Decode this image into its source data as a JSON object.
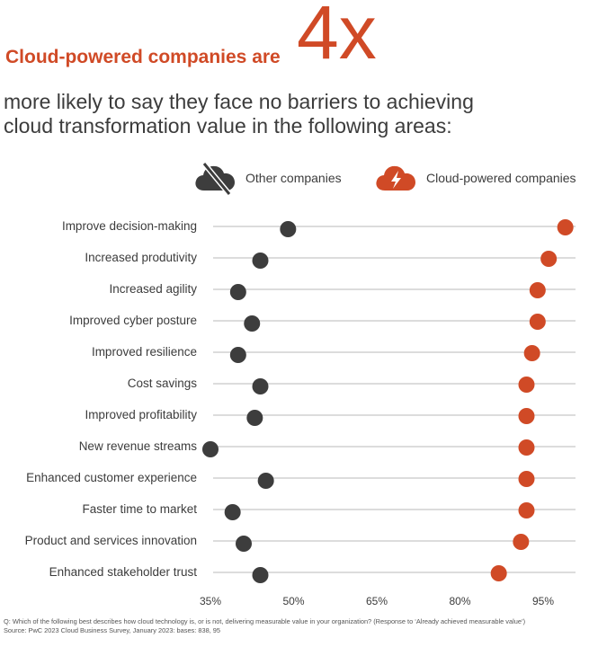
{
  "headline": {
    "lead": "Cloud-powered companies are",
    "multiplier": "4x"
  },
  "subhead": {
    "line1": "more likely to say they face no barriers to achieving",
    "line2": "cloud transformation value in the following areas:"
  },
  "legend": {
    "other": {
      "label": "Other companies",
      "icon": "cloud-off-icon",
      "color": "#3d3d3d"
    },
    "cloud": {
      "label": "Cloud-powered companies",
      "icon": "cloud-bolt-icon",
      "color": "#d04a26"
    }
  },
  "chart_data": {
    "type": "dot",
    "categories": [
      "Improve decision-making",
      "Increased produtivity",
      "Increased agility",
      "Improved cyber posture",
      "Improved resilience",
      "Cost savings",
      "Improved profitability",
      "New revenue streams",
      "Enhanced customer experience",
      "Faster time to market",
      "Product and services innovation",
      "Enhanced stakeholder trust"
    ],
    "series": [
      {
        "name": "Other companies",
        "color": "#3d3d3d",
        "values": [
          49,
          44,
          40,
          42.5,
          40,
          44,
          43,
          35,
          45,
          39,
          41,
          44
        ]
      },
      {
        "name": "Cloud-powered companies",
        "color": "#d04a26",
        "values": [
          99,
          96,
          94,
          94,
          93,
          92,
          92,
          92,
          92,
          92,
          91,
          87
        ]
      }
    ],
    "xticks": [
      "35%",
      "50%",
      "65%",
      "80%",
      "95%"
    ],
    "xtick_values": [
      35,
      50,
      65,
      80,
      95
    ],
    "xlim": [
      35,
      95
    ]
  },
  "footnote": {
    "question": "Q: Which of the following best describes how cloud technology is, or is not, delivering measurable value in your organization? (Response to ‘Already achieved measurable value’)",
    "source": "Source: PwC 2023 Cloud Business Survey, January 2023: bases: 838, 95"
  }
}
